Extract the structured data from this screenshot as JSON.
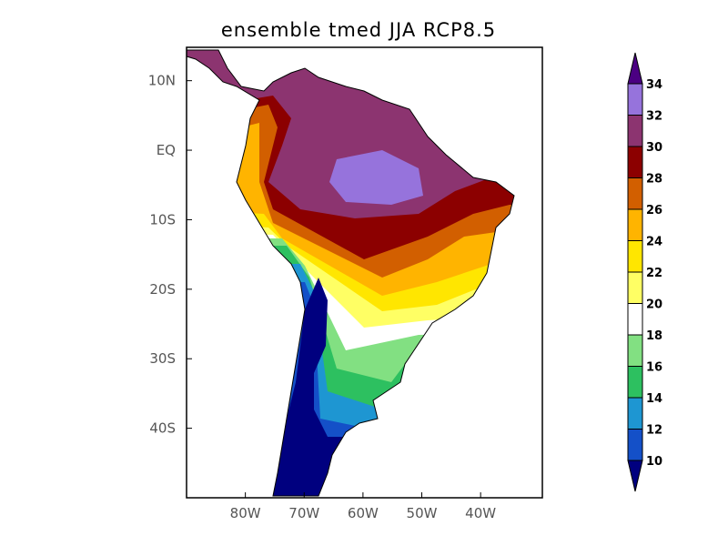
{
  "title": "ensemble tmed JJA RCP8.5",
  "lat_labels": [
    "10N",
    "EQ",
    "10S",
    "20S",
    "30S",
    "40S"
  ],
  "lat_values": [
    10,
    0,
    -10,
    -20,
    -30,
    -40
  ],
  "lon_labels": [
    "80W",
    "70W",
    "60W",
    "50W",
    "40W"
  ],
  "lon_values": [
    -80,
    -70,
    -60,
    -50,
    -40
  ],
  "map_extent": {
    "lon": [
      -90,
      -29.5
    ],
    "lat": [
      -50,
      14.8
    ]
  },
  "colorbar": {
    "levels": [
      "10",
      "12",
      "14",
      "16",
      "18",
      "20",
      "22",
      "24",
      "26",
      "28",
      "30",
      "32",
      "34"
    ],
    "below_color": "#00007F",
    "above_color": "#4B0082",
    "colors": [
      "#1450C8",
      "#1E96D2",
      "#2DC060",
      "#82E082",
      "#FFFFFF",
      "#FFFF64",
      "#FFE600",
      "#FFB400",
      "#D25F00",
      "#8C0000",
      "#8C3470",
      "#9673DC"
    ]
  }
}
